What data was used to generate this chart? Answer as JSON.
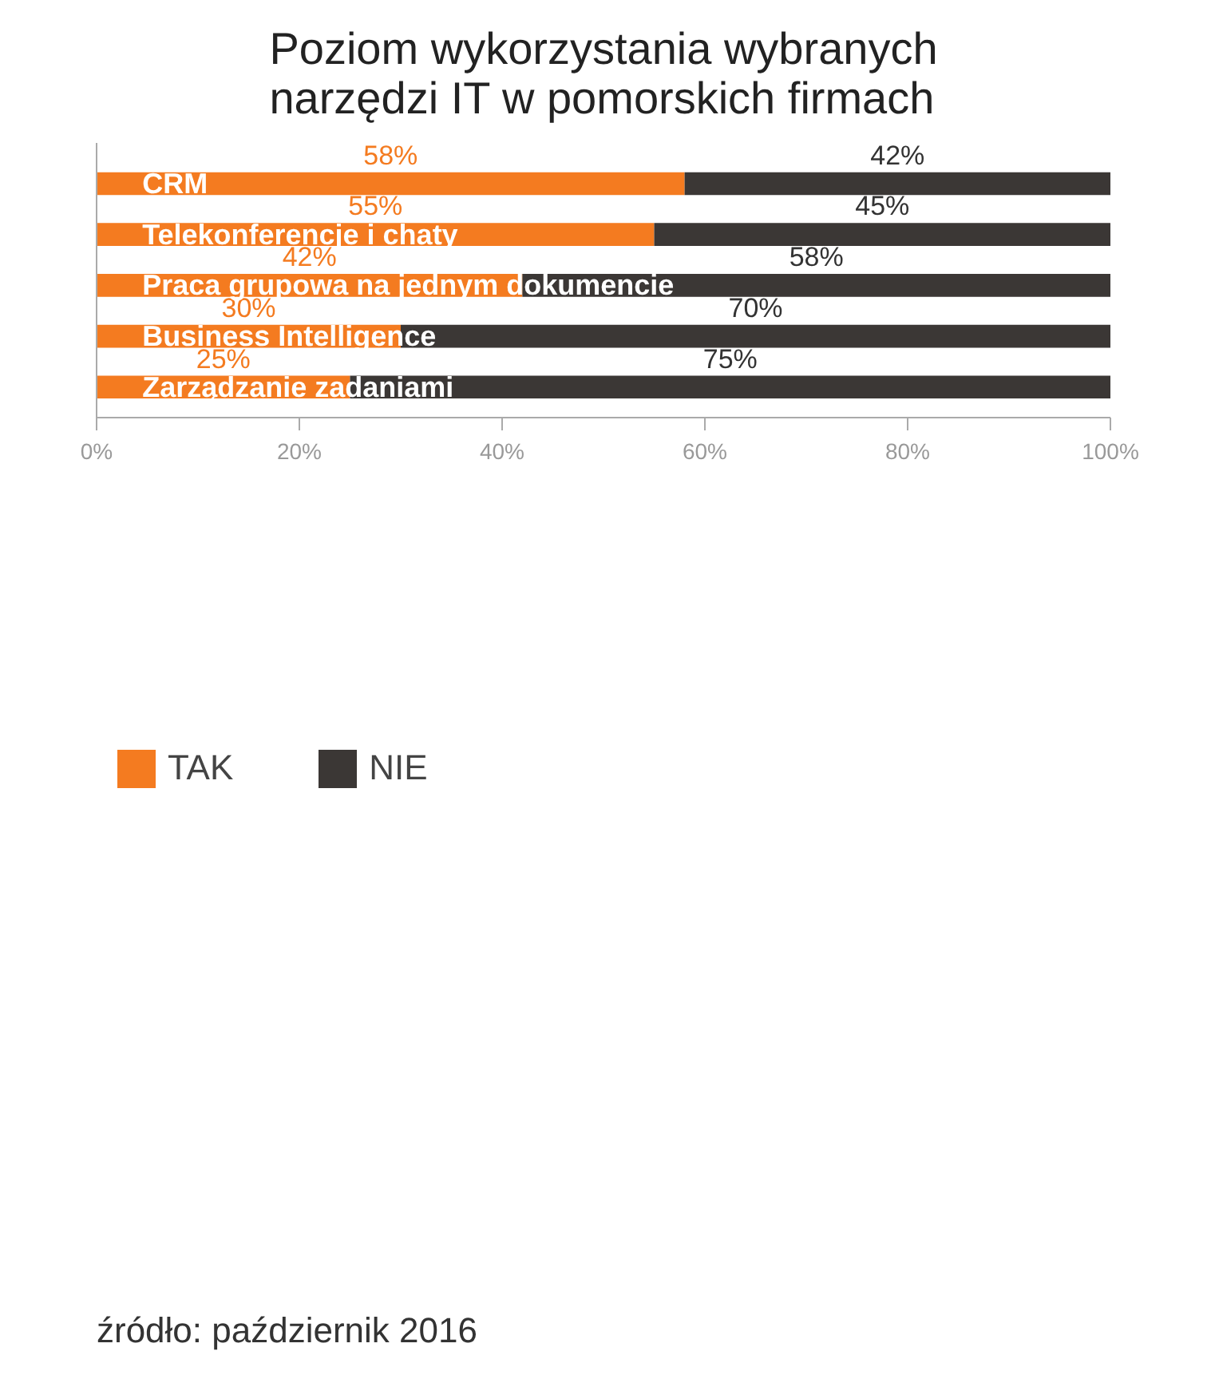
{
  "chart_data": {
    "type": "bar",
    "orientation": "horizontal",
    "stacked": true,
    "title": "Poziom wykorzystania wybranych narzędzi IT w pomorskich firmach",
    "categories": [
      "CRM",
      "Telekonferencje i chaty",
      "Praca grupowa na jednym dokumencie",
      "Business Intelligence",
      "Zarządzanie zadaniami"
    ],
    "series": [
      {
        "name": "TAK",
        "color": "#f47b20",
        "values": [
          58,
          55,
          42,
          30,
          25
        ],
        "value_labels": [
          "58%",
          "55%",
          "42%",
          "30%",
          "25%"
        ]
      },
      {
        "name": "NIE",
        "color": "#3b3735",
        "values": [
          42,
          45,
          58,
          70,
          75
        ],
        "value_labels": [
          "42%",
          "45%",
          "58%",
          "70%",
          "75%"
        ]
      }
    ],
    "xlim": [
      0,
      100
    ],
    "xticks": [
      {
        "value": 0,
        "label": "0%"
      },
      {
        "value": 20,
        "label": "20%"
      },
      {
        "value": 40,
        "label": "40%"
      },
      {
        "value": 60,
        "label": "60%"
      },
      {
        "value": 80,
        "label": "80%"
      },
      {
        "value": 100,
        "label": "100%"
      }
    ],
    "grid": false,
    "legend": "bottom",
    "annotations": [
      "źródło: październik 2016"
    ]
  }
}
